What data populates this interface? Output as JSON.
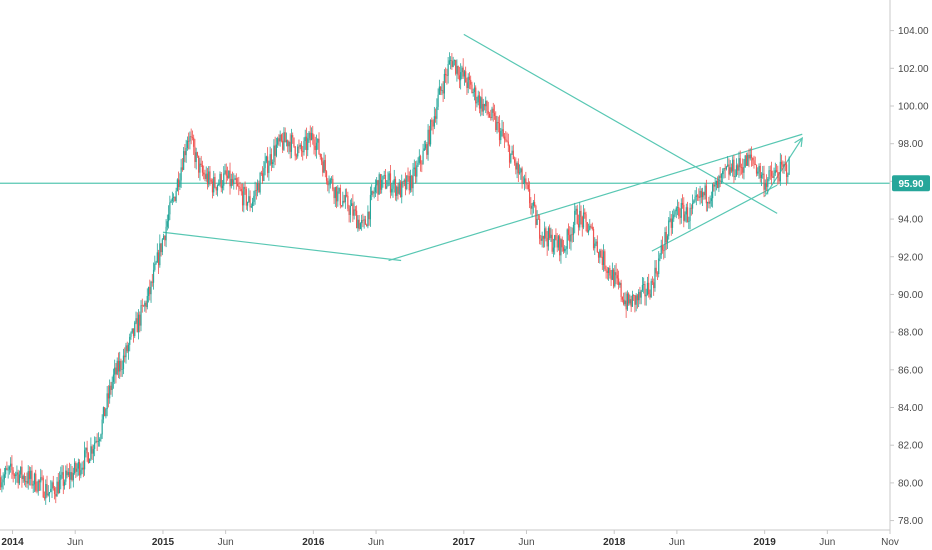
{
  "chart_data": {
    "type": "line",
    "style": "candlestick price chart with drawn trendlines",
    "x_range": [
      "2013-12",
      "2019-11"
    ],
    "x_ticks": [
      {
        "date": "2014-01",
        "label": "2014",
        "is_year": true
      },
      {
        "date": "2014-06",
        "label": "Jun",
        "is_year": false
      },
      {
        "date": "2015-01",
        "label": "2015",
        "is_year": true
      },
      {
        "date": "2015-06",
        "label": "Jun",
        "is_year": false
      },
      {
        "date": "2016-01",
        "label": "2016",
        "is_year": true
      },
      {
        "date": "2016-06",
        "label": "Jun",
        "is_year": false
      },
      {
        "date": "2017-01",
        "label": "2017",
        "is_year": true
      },
      {
        "date": "2017-06",
        "label": "Jun",
        "is_year": false
      },
      {
        "date": "2018-01",
        "label": "2018",
        "is_year": true
      },
      {
        "date": "2018-06",
        "label": "Jun",
        "is_year": false
      },
      {
        "date": "2019-01",
        "label": "2019",
        "is_year": true
      },
      {
        "date": "2019-06",
        "label": "Jun",
        "is_year": false
      },
      {
        "date": "2019-11",
        "label": "Nov",
        "is_year": false
      }
    ],
    "y_axis": {
      "position": "right",
      "ylim": [
        77.5,
        105.2
      ],
      "ticks": [
        "78.00",
        "80.00",
        "82.00",
        "84.00",
        "86.00",
        "88.00",
        "90.00",
        "92.00",
        "94.00",
        "96.00",
        "98.00",
        "100.00",
        "102.00",
        "104.00"
      ]
    },
    "grid": false,
    "last_price": {
      "value": 95.9,
      "label": "95.90",
      "color": "#26a69a"
    },
    "colors": {
      "up": "#26a69a",
      "down": "#ef5350",
      "trendline": "#58c7b3",
      "axis": "#c8c8c8",
      "text": "#4a4a4a"
    },
    "series": [
      {
        "values_date": [
          "2013-12",
          "2014-01",
          "2014-02",
          "2014-03",
          "2014-04",
          "2014-05",
          "2014-06",
          "2014-07",
          "2014-08",
          "2014-09",
          "2014-10",
          "2014-11",
          "2014-12",
          "2015-01",
          "2015-02",
          "2015-03",
          "2015-04",
          "2015-05",
          "2015-06",
          "2015-07",
          "2015-08",
          "2015-09",
          "2015-10",
          "2015-11",
          "2015-12",
          "2016-01",
          "2016-02",
          "2016-03",
          "2016-04",
          "2016-05",
          "2016-06",
          "2016-07",
          "2016-08",
          "2016-09",
          "2016-10",
          "2016-11",
          "2016-12",
          "2017-01",
          "2017-02",
          "2017-03",
          "2017-04",
          "2017-05",
          "2017-06",
          "2017-07",
          "2017-08",
          "2017-09",
          "2017-10",
          "2017-11",
          "2017-12",
          "2018-01",
          "2018-02",
          "2018-03",
          "2018-04",
          "2018-05",
          "2018-06",
          "2018-07",
          "2018-08",
          "2018-09",
          "2018-10",
          "2018-11",
          "2018-12",
          "2019-01",
          "2019-02",
          "2019-03"
        ],
        "values": [
          80.3,
          80.6,
          80.3,
          80.0,
          79.5,
          80.1,
          80.6,
          81.5,
          82.8,
          85.5,
          86.8,
          88.5,
          90.2,
          93.0,
          95.5,
          98.5,
          96.5,
          95.8,
          96.2,
          95.5,
          94.8,
          96.5,
          97.8,
          98.2,
          97.5,
          98.5,
          96.5,
          95.2,
          94.5,
          93.5,
          95.8,
          96.0,
          95.5,
          96.2,
          97.8,
          100.5,
          102.5,
          101.5,
          100.5,
          99.6,
          98.5,
          97.0,
          95.5,
          93.5,
          92.8,
          92.5,
          94.2,
          93.5,
          92.0,
          90.8,
          89.5,
          89.8,
          90.5,
          92.8,
          94.5,
          94.2,
          95.2,
          95.5,
          96.5,
          96.8,
          97.2,
          96.0,
          96.4,
          96.8
        ]
      }
    ],
    "trendlines": [
      {
        "points": [
          [
            "2015-01",
            93.3
          ],
          [
            "2016-08",
            91.8
          ]
        ],
        "arrow": false
      },
      {
        "points": [
          [
            "2016-07",
            91.8
          ],
          [
            "2019-04",
            98.5
          ]
        ],
        "arrow": false
      },
      {
        "points": [
          [
            "2017-01",
            103.8
          ],
          [
            "2019-02",
            94.3
          ]
        ],
        "arrow": false
      },
      {
        "points": [
          [
            "2018-04",
            92.3
          ],
          [
            "2019-02",
            95.8
          ]
        ],
        "arrow": false
      },
      {
        "points": [
          [
            "2019-01",
            95.2
          ],
          [
            "2019-04",
            98.3
          ]
        ],
        "arrow": true
      },
      {
        "points": [
          [
            "2013-12",
            95.9
          ],
          [
            "2019-11",
            95.9
          ]
        ],
        "arrow": false
      }
    ]
  }
}
